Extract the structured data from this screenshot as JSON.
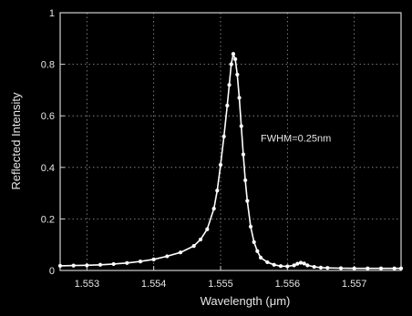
{
  "chart_data": {
    "type": "line",
    "title": "",
    "xlabel": "Wavelength (μm)",
    "ylabel": "Reflected Intensity",
    "xlim": [
      1.5526,
      1.5577
    ],
    "ylim": [
      0,
      1
    ],
    "x_ticks": [
      1.553,
      1.554,
      1.555,
      1.556,
      1.557
    ],
    "x_tick_labels": [
      "1.553",
      "1.554",
      "1.555",
      "1.556",
      "1.557"
    ],
    "y_ticks": [
      0,
      0.2,
      0.4,
      0.6,
      0.8,
      1
    ],
    "y_tick_labels": [
      "0",
      "0.2",
      "0.4",
      "0.6",
      "0.8",
      "1"
    ],
    "grid": true,
    "background_color": "#000000",
    "line_color": "#ffffff",
    "annotations": [
      {
        "text": "FWHM=0.25nm",
        "x": 1.5556,
        "y": 0.5
      }
    ],
    "series": [
      {
        "marker": "circle",
        "x": [
          1.5526,
          1.5528,
          1.553,
          1.5532,
          1.5534,
          1.5536,
          1.5538,
          1.554,
          1.5542,
          1.5544,
          1.5546,
          1.5547,
          1.5548,
          1.5549,
          1.55495,
          1.555,
          1.55505,
          1.5551,
          1.55513,
          1.55516,
          1.55519,
          1.55522,
          1.55525,
          1.55528,
          1.55531,
          1.55534,
          1.55537,
          1.5554,
          1.55545,
          1.5555,
          1.55555,
          1.5556,
          1.5557,
          1.5558,
          1.5559,
          1.556,
          1.5561,
          1.55615,
          1.5562,
          1.55625,
          1.5563,
          1.5564,
          1.5565,
          1.5566,
          1.5568,
          1.557,
          1.5572,
          1.5574,
          1.5576,
          1.5577
        ],
        "y": [
          0.018,
          0.019,
          0.02,
          0.022,
          0.025,
          0.029,
          0.035,
          0.043,
          0.055,
          0.07,
          0.095,
          0.12,
          0.16,
          0.24,
          0.31,
          0.41,
          0.52,
          0.64,
          0.72,
          0.8,
          0.84,
          0.82,
          0.76,
          0.67,
          0.56,
          0.45,
          0.35,
          0.27,
          0.17,
          0.11,
          0.075,
          0.05,
          0.032,
          0.022,
          0.017,
          0.016,
          0.02,
          0.026,
          0.03,
          0.027,
          0.02,
          0.014,
          0.011,
          0.01,
          0.009,
          0.008,
          0.008,
          0.008,
          0.008,
          0.008
        ]
      }
    ]
  }
}
